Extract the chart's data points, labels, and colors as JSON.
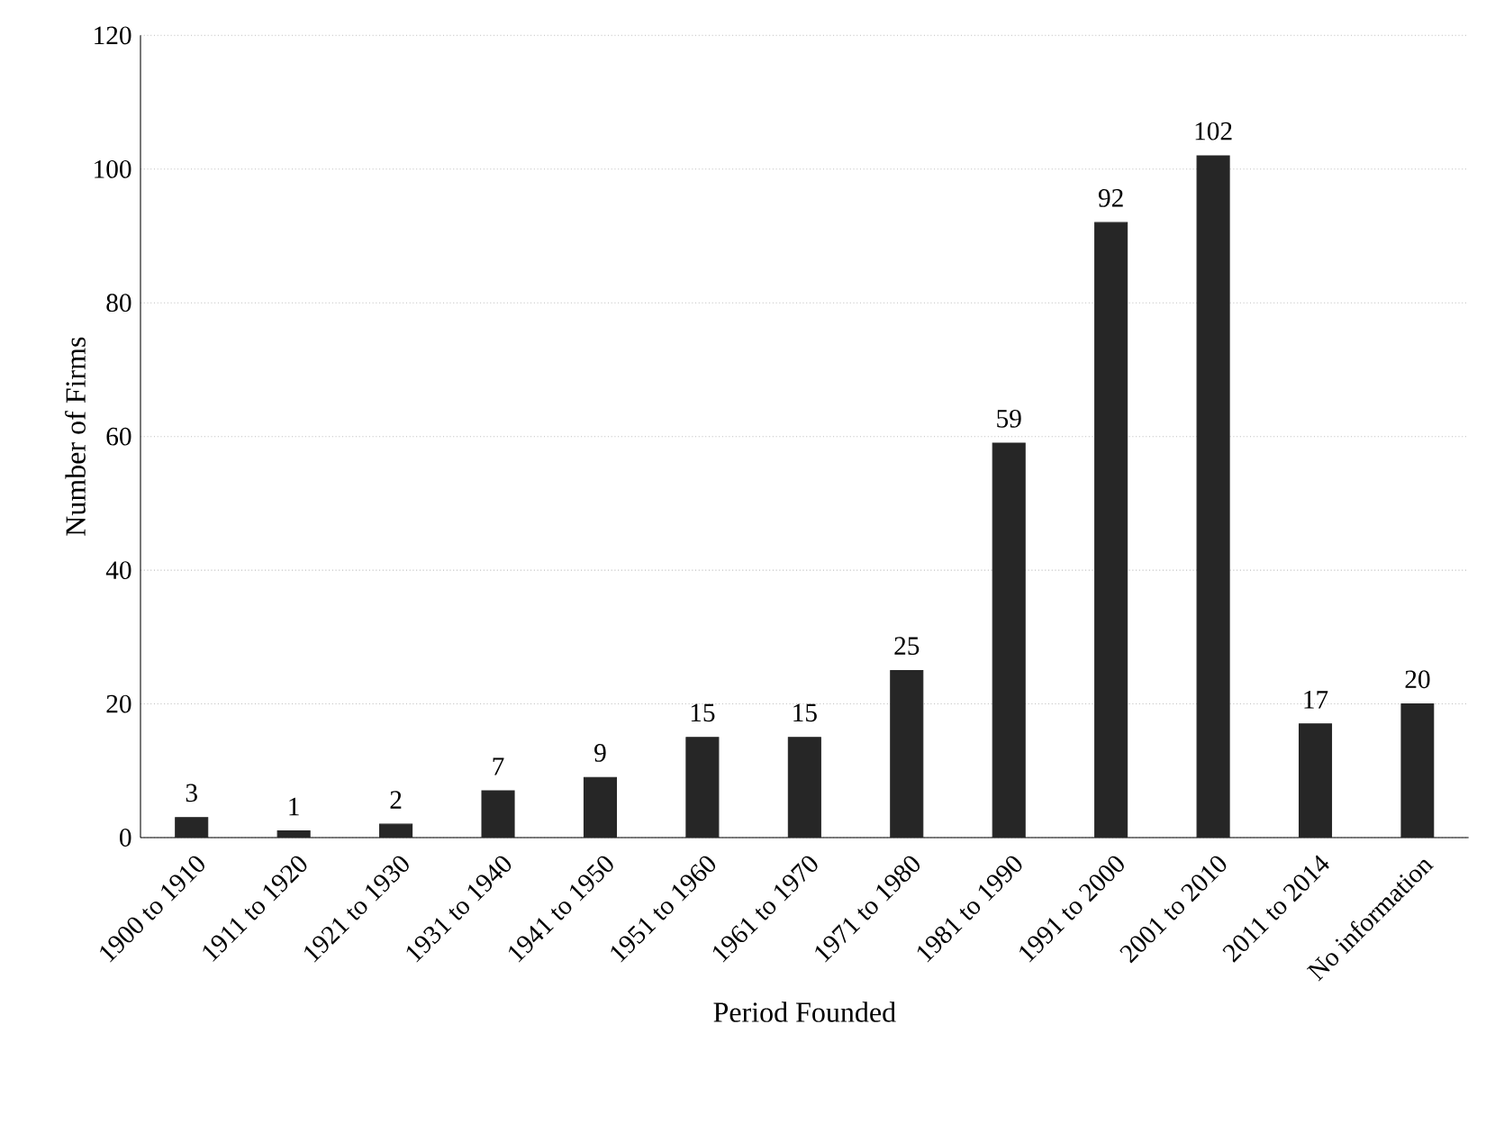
{
  "chart_data": {
    "type": "bar",
    "xlabel": "Period Founded",
    "ylabel": "Number of Firms",
    "categories": [
      "1900 to 1910",
      "1911 to 1920",
      "1921 to 1930",
      "1931 to 1940",
      "1941 to 1950",
      "1951 to 1960",
      "1961 to 1970",
      "1971 to 1980",
      "1981 to 1990",
      "1991 to 2000",
      "2001 to 2010",
      "2011 to 2014",
      "No information"
    ],
    "values": [
      3,
      1,
      2,
      7,
      9,
      15,
      15,
      25,
      59,
      92,
      102,
      17,
      20
    ],
    "color": "#262626",
    "ylim": [
      0,
      120
    ],
    "yticks": [
      0,
      20,
      40,
      60,
      80,
      100,
      120
    ],
    "grid": "y",
    "data_labels": true
  }
}
